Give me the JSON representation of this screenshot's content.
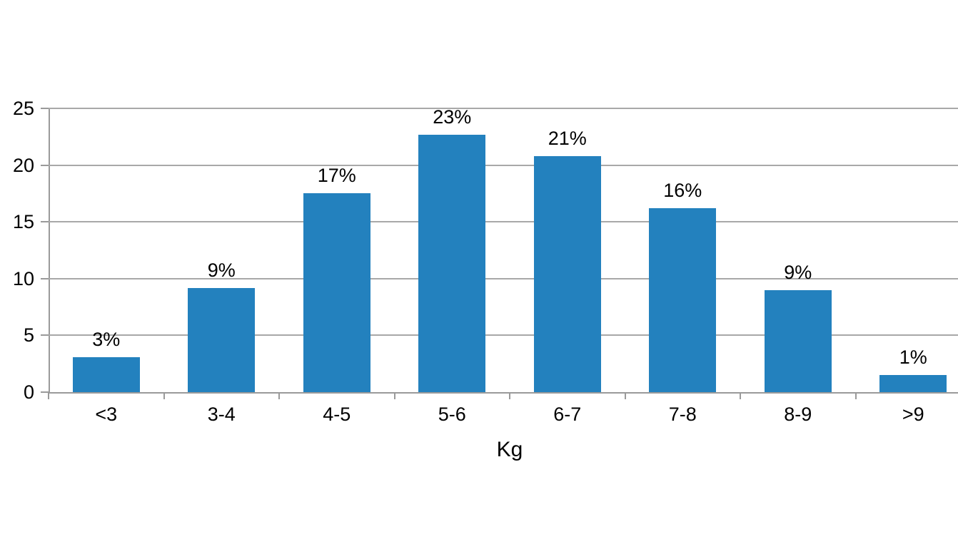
{
  "chart_data": {
    "type": "bar",
    "title": "",
    "xlabel": "Kg",
    "ylabel": "",
    "categories": [
      "<3",
      "3-4",
      "4-5",
      "5-6",
      "6-7",
      "7-8",
      "8-9",
      ">9"
    ],
    "values": [
      3.1,
      9.2,
      17.5,
      22.7,
      20.8,
      16.2,
      9.0,
      1.5
    ],
    "bar_labels": [
      "3%",
      "9%",
      "17%",
      "23%",
      "21%",
      "16%",
      "9%",
      "1%"
    ],
    "ylim": [
      0,
      25
    ],
    "yticks": [
      0,
      5,
      10,
      15,
      20,
      25
    ],
    "grid": true,
    "legend": false,
    "colors": {
      "bar": "#2381be",
      "gridline": "#a8a8a8",
      "axis": "#9a9a9a",
      "text": "#000000",
      "background": "#ffffff"
    }
  }
}
